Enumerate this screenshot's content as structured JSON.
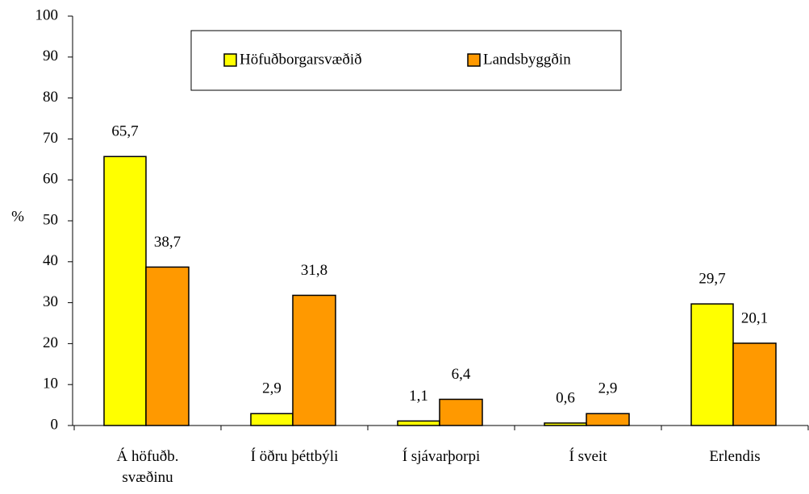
{
  "chart_data": {
    "type": "bar",
    "y_label": "%",
    "categories": [
      "Á höfuðb.\nsvæðinu",
      "Í öðru þéttbýli",
      "Í sjávarþorpi",
      "Í sveit",
      "Erlendis"
    ],
    "series": [
      {
        "name": "Höfuðborgarsvæðið",
        "color": "#ffff00",
        "values": [
          65.7,
          2.9,
          1.1,
          0.6,
          29.7
        ],
        "value_labels": [
          "65,7",
          "2,9",
          "1,1",
          "0,6",
          "29,7"
        ]
      },
      {
        "name": "Landsbyggðin",
        "color": "#ff9900",
        "values": [
          38.7,
          31.8,
          6.4,
          2.9,
          20.1
        ],
        "value_labels": [
          "38,7",
          "31,8",
          "6,4",
          "2,9",
          "20,1"
        ]
      }
    ],
    "ylim": [
      0,
      100
    ],
    "yticks": [
      0,
      10,
      20,
      30,
      40,
      50,
      60,
      70,
      80,
      90,
      100
    ],
    "grid": false,
    "legend": "top"
  }
}
